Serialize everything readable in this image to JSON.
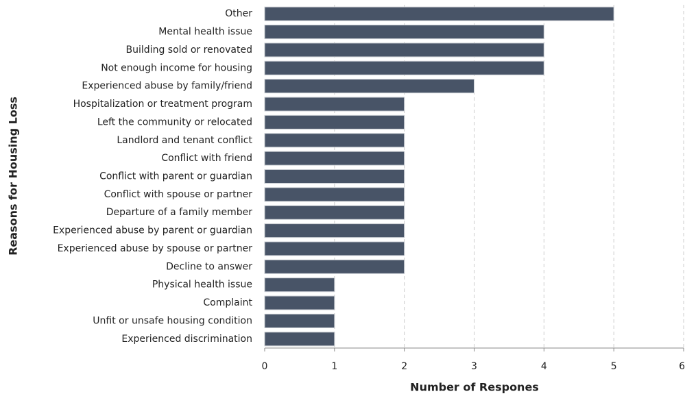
{
  "chart_data": {
    "type": "bar",
    "orientation": "horizontal",
    "xlabel": "Number of Respones",
    "ylabel": "Reasons for Housing Loss",
    "categories": [
      "Other",
      "Mental health issue",
      "Building sold or renovated",
      "Not enough income for housing",
      "Experienced abuse by family/friend",
      "Hospitalization or treatment program",
      "Left the community or relocated",
      "Landlord and tenant conflict",
      "Conflict with friend",
      "Conflict with parent or guardian",
      "Conflict with spouse or partner",
      "Departure of a family member",
      "Experienced abuse by parent or guardian",
      "Experienced abuse by spouse or partner",
      "Decline to answer",
      "Physical health issue",
      "Complaint",
      "Unfit or unsafe housing condition",
      "Experienced discrimination"
    ],
    "values": [
      5,
      4,
      4,
      4,
      3,
      2,
      2,
      2,
      2,
      2,
      2,
      2,
      2,
      2,
      2,
      1,
      1,
      1,
      1
    ],
    "color": "#485467",
    "xlim": [
      0,
      6
    ],
    "xticks": [
      0,
      1,
      2,
      3,
      4,
      5,
      6
    ],
    "grid": true
  }
}
